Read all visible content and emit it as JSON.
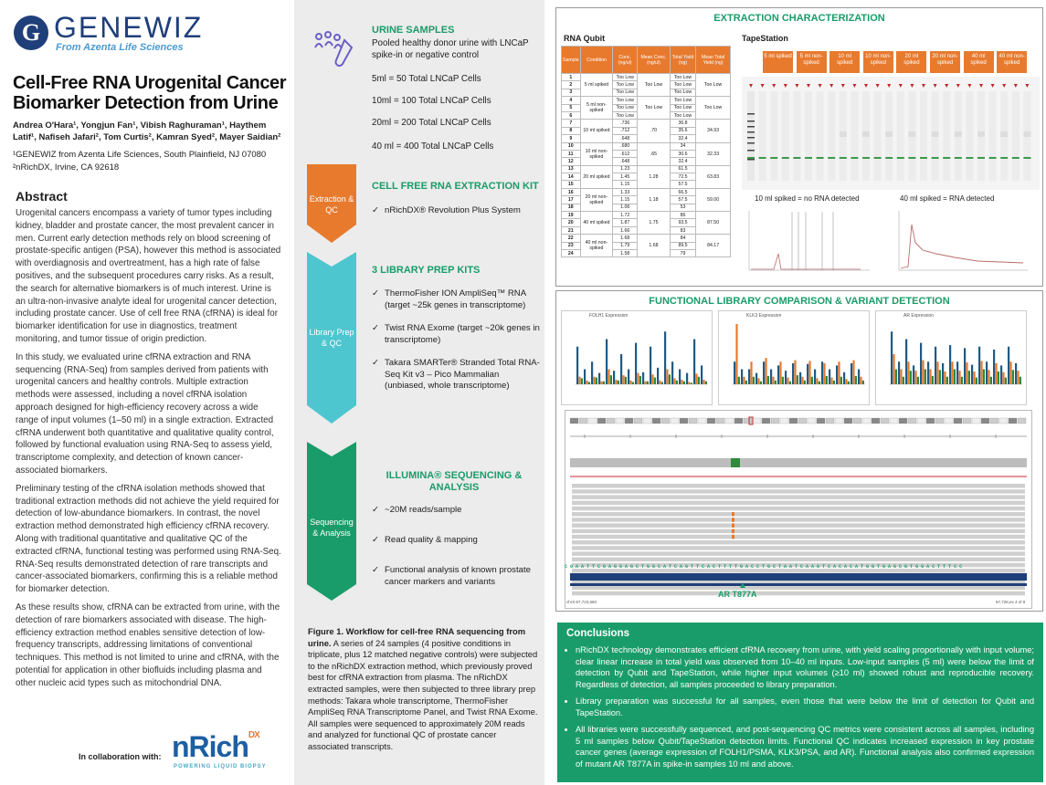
{
  "header": {
    "logo_letter": "G",
    "logo_name": "GENEWIZ",
    "logo_sub": "From Azenta Life Sciences",
    "title": "Cell-Free RNA Urogenital Cancer Biomarker Detection from Urine",
    "authors": "Andrea O'Hara¹, Yongjun Fan¹, Vibish Raghuraman¹, Haythem Latif¹, Nafiseh Jafari², Tom Curtis², Kamran Syed², Mayer Saidian²",
    "affil1": "¹GENEWIZ from Azenta Life Sciences, South Plainfield, NJ 07080",
    "affil2": "²nRichDX, Irvine, CA 92618"
  },
  "abstract": {
    "heading": "Abstract",
    "p1": "Urogenital cancers encompass a variety of tumor types including kidney, bladder and prostate cancer, the most prevalent cancer in men. Current early detection methods rely on blood screening of prostate-specific antigen (PSA), however this method is associated with overdiagnosis and overtreatment, has a high rate of false positives, and the subsequent procedures carry risks. As a result, the search for alternative biomarkers is of much interest. Urine is an ultra-non-invasive analyte ideal for urogenital cancer detection, including prostate cancer. Use of cell free RNA (cfRNA) is ideal for biomarker identification for use in diagnostics, treatment monitoring, and tumor tissue of origin prediction.",
    "p2": "In this study, we evaluated urine cfRNA extraction and RNA sequencing (RNA-Seq) from samples derived from patients with urogenital cancers and healthy controls. Multiple extraction methods were assessed, including a novel cfRNA isolation approach designed for high-efficiency recovery across a wide range of input volumes (1–50 ml) in a single extraction. Extracted cfRNA underwent both quantitative and qualitative quality control, followed by functional evaluation using RNA-Seq to assess yield, transcriptome complexity, and detection of known cancer-associated biomarkers.",
    "p3": "Preliminary testing of the cfRNA isolation methods showed that traditional extraction methods did not achieve the yield required for detection of low-abundance biomarkers. In contrast, the novel extraction method demonstrated high efficiency cfRNA recovery. Along with traditional quantitative and qualitative QC of the extracted cfRNA, functional testing was performed using RNA-Seq. RNA-Seq results demonstrated detection of rare transcripts and cancer-associated biomarkers, confirming this is a reliable method for biomarker detection.",
    "p4": "As these results show, cfRNA can be extracted from urine, with the detection of rare biomarkers associated with disease. The high-efficiency extraction method enables sensitive detection of low-frequency transcripts, addressing limitations of conventional techniques. This method is not limited to urine and cfRNA, with the potential for application in other biofluids including plasma and other nucleic acid types such as mitochondrial DNA."
  },
  "collab": {
    "label": "In collaboration with:",
    "brand": "nRich",
    "brand_sup": "DX",
    "brand_sub": "POWERING LIQUID BIOPSY"
  },
  "workflow": {
    "urine_h": "URINE SAMPLES",
    "urine_desc": "Pooled healthy donor urine with LNCaP spike-in or negative control",
    "urine_l1": "5ml = 50 Total LNCaP Cells",
    "urine_l2": "10ml = 100 Total LNCaP Cells",
    "urine_l3": "20ml = 200 Total LNCaP Cells",
    "urine_l4": "40 ml = 400 Total LNCaP Cells",
    "stage1": "Extraction & QC",
    "kit_h": "CELL FREE RNA EXTRACTION KIT",
    "kit_b1": "nRichDX® Revolution Plus System",
    "stage2": "Library Prep & QC",
    "lib_h": "3 LIBRARY PREP KITS",
    "lib_b1": "ThermoFisher ION AmpliSeq™ RNA (target ~25k genes in transcriptome)",
    "lib_b2": "Twist RNA Exome (target ~20k genes in transcriptome)",
    "lib_b3": "Takara SMARTer® Stranded Total RNA-Seq Kit v3 – Pico Mammalian (unbiased, whole transcriptome)",
    "stage3": "Sequencing & Analysis",
    "seq_h": "ILLUMINA® SEQUENCING & ANALYSIS",
    "seq_b1": "~20M reads/sample",
    "seq_b2": "Read quality & mapping",
    "seq_b3": "Functional analysis of known prostate cancer markers and variants",
    "check": "✓",
    "fig_bold": "Figure 1. Workflow for cell-free RNA sequencing from urine.",
    "fig_text": " A series of 24 samples (4 positive conditions in triplicate, plus 12 matched negative controls) were subjected to the nRichDX extraction method, which previously proved best for cfRNA extraction from plasma. The nRichDX extracted samples, were then subjected to three library prep methods: Takara whole transcriptome, ThermoFisher AmpliSeq RNA Transcriptome Panel, and Twist RNA Exome. All samples were sequenced to approximately 20M reads and analyzed for functional QC of prostate cancer associated transcripts."
  },
  "extraction": {
    "heading": "EXTRACTION CHARACTERIZATION",
    "qubit_h": "RNA Qubit",
    "tape_h": "TapeStation",
    "cols": [
      "Sample",
      "Condition",
      "Conc. (ng/ul)",
      "Mean Conc. (ng/ul)",
      "Total Yield (ng)",
      "Mean Total Yield (ng)"
    ],
    "rows": [
      [
        "1",
        "Too Low",
        "Too Low"
      ],
      [
        "2",
        "Too Low",
        "Too Low"
      ],
      [
        "3",
        "Too Low",
        "Too Low"
      ],
      [
        "4",
        "Too Low",
        "Too Low"
      ],
      [
        "5",
        "Too Low",
        "Too Low"
      ],
      [
        "6",
        "Too Low",
        "Too Low"
      ],
      [
        "7",
        ".736",
        "36.8"
      ],
      [
        "8",
        ".712",
        "35.6"
      ],
      [
        "9",
        ".648",
        "32.4"
      ],
      [
        "10",
        ".680",
        "34"
      ],
      [
        "11",
        ".612",
        "30.6"
      ],
      [
        "12",
        ".648",
        "32.4"
      ],
      [
        "13",
        "1.23",
        "61.5"
      ],
      [
        "14",
        "1.45",
        "72.5"
      ],
      [
        "15",
        "1.15",
        "57.5"
      ],
      [
        "16",
        "1.33",
        "66.5"
      ],
      [
        "17",
        "1.15",
        "57.5"
      ],
      [
        "18",
        "1.06",
        "53"
      ],
      [
        "19",
        "1.72",
        "86"
      ],
      [
        "20",
        "1.87",
        "93.5"
      ],
      [
        "21",
        "1.66",
        "83"
      ],
      [
        "22",
        "1.68",
        "84"
      ],
      [
        "23",
        "1.79",
        "89.5"
      ],
      [
        "24",
        "1.58",
        "79"
      ]
    ],
    "groups": [
      {
        "cond": "5 ml spiked",
        "mean": "Too Low",
        "meanY": "Too Low"
      },
      {
        "cond": "5 ml non-spiked",
        "mean": "Too Low",
        "meanY": "Too Low"
      },
      {
        "cond": "10 ml spiked",
        "mean": ".70",
        "meanY": "34.93"
      },
      {
        "cond": "10 ml non-spiked",
        "mean": ".65",
        "meanY": "32.33"
      },
      {
        "cond": "20 ml spiked",
        "mean": "1.28",
        "meanY": "63.83"
      },
      {
        "cond": "20 ml non-spiked",
        "mean": "1.18",
        "meanY": "59.00"
      },
      {
        "cond": "40 ml spiked",
        "mean": "1.75",
        "meanY": "87.50"
      },
      {
        "cond": "40 ml non-spiked",
        "mean": "1.68",
        "meanY": "84.17"
      }
    ],
    "tape_cols": [
      "5 ml spiked",
      "5 ml non-spiked",
      "10 ml spiked",
      "10 ml non-spiked",
      "20 ml spiked",
      "20 ml non-spiked",
      "40 ml spiked",
      "40 ml non-spiked"
    ],
    "trace1": "10 ml spiked = no RNA detected",
    "trace2": "40 ml spiked = RNA detected"
  },
  "functional": {
    "heading": "FUNCTIONAL LIBRARY COMPARISON & VARIANT DETECTION",
    "chart1": "FOLH1 Expression",
    "chart2": "KLK3 Expression",
    "chart3": "AR Expression",
    "variant": "AR T877A",
    "sequence": "C G A A T T C G A G G A G C T G G C A T C A G T T C A C T T T T G A C C T G C T A A T C A A G T C A C A C A T G G T G A G C G T G G A C T T T C C",
    "axis_left": "chrX:67,723,660",
    "axis_right": "67,726,ex 4 of 8"
  },
  "colors": {
    "green": "#1a9c6a",
    "orange": "#e87a2e",
    "teal": "#4ec6cf",
    "navy": "#1f5a85"
  },
  "conclusions": {
    "heading": "Conclusions",
    "c1": "nRichDX technology demonstrates efficient cfRNA recovery from urine, with yield scaling proportionally with input volume; clear linear increase in total yield was observed from 10–40 ml inputs. Low-input samples (5 ml) were below the limit of detection by Qubit and TapeStation, while higher input volumes (≥10 ml) showed robust and reproducible recovery. Regardless of detection, all samples proceeded to library preparation.",
    "c2": "Library preparation was successful for all samples, even those that were below the limit of detection for Qubit and TapeStation.",
    "c3": "All libraries were successfully sequenced, and post-sequencing QC metrics were consistent across all samples, including 5 ml samples below Qubit/TapeStation detection limits. Functional QC indicates increased expression in key prostate cancer genes (average expression of FOLH1/PSMA, KLK3/PSA, and AR). Functional analysis also confirmed expression of mutant AR T877A in spike-in samples 10 ml and above."
  }
}
